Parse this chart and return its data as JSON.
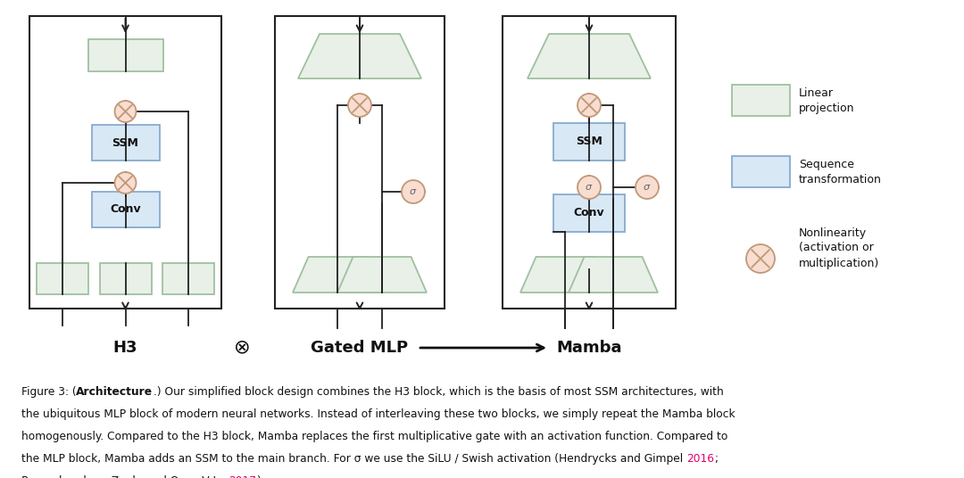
{
  "bg_color": "#ffffff",
  "green_fill": "#e8f0e8",
  "green_edge": "#a0c0a0",
  "blue_fill": "#d8e8f5",
  "blue_edge": "#88aad0",
  "circle_fill": "#f8ddd0",
  "circle_edge": "#c09878",
  "box_edge": "#222222",
  "text_color": "#111111",
  "red_color": "#e0006a",
  "h3_label": "H3",
  "gatedmlp_label": "Gated MLP",
  "mamba_label": "Mamba",
  "legend_linear": "Linear\nprojection",
  "legend_sequence": "Sequence\ntransformation",
  "legend_nonlinear": "Nonlinearity\n(activation or\nmultiplication)"
}
